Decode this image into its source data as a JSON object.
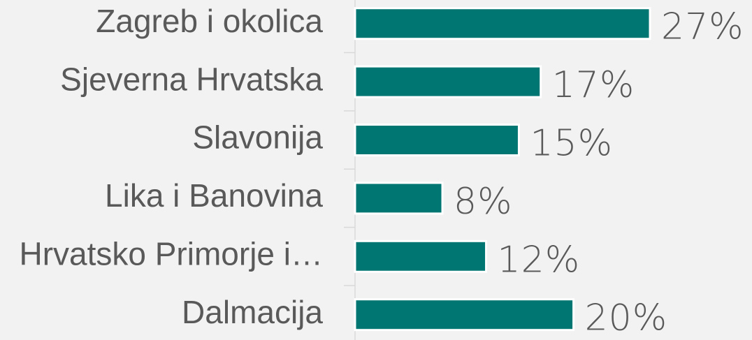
{
  "chart_data": {
    "type": "bar",
    "orientation": "horizontal",
    "categories": [
      "Zagreb i okolica",
      "Sjeverna Hrvatska",
      "Slavonija",
      "Lika i Banovina",
      "Hrvatsko Primorje i…",
      "Dalmacija"
    ],
    "values": [
      27,
      17,
      15,
      8,
      12,
      20
    ],
    "value_labels": [
      "27%",
      "17%",
      "15%",
      "8%",
      "12%",
      "20%"
    ],
    "color": "#007672"
  }
}
